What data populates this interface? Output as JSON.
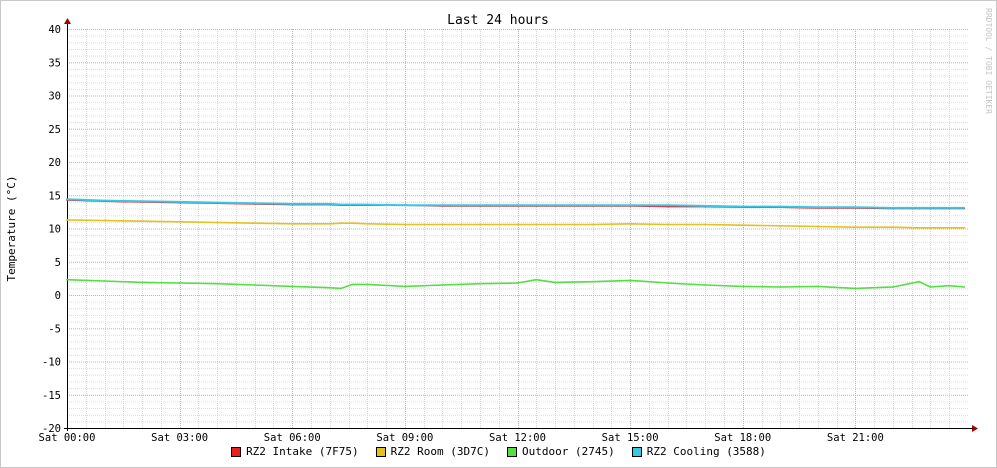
{
  "watermark": "RRDTOOL / TOBI OETIKER",
  "chart_data": {
    "type": "line",
    "title": "Last 24 hours",
    "xlabel": "",
    "ylabel": "Temperature (°C)",
    "ylim": [
      -20,
      40
    ],
    "yticks": [
      40,
      35,
      30,
      25,
      20,
      15,
      10,
      5,
      0,
      -5,
      -10,
      -15,
      -20
    ],
    "xlim_hours": [
      0,
      24
    ],
    "x_tick_hours": [
      0,
      3,
      6,
      9,
      12,
      15,
      18,
      21
    ],
    "x_tick_labels": [
      "Sat 00:00",
      "Sat 03:00",
      "Sat 06:00",
      "Sat 09:00",
      "Sat 12:00",
      "Sat 15:00",
      "Sat 18:00",
      "Sat 21:00"
    ],
    "grid": true,
    "legend_position": "bottom",
    "x_hours": [
      0,
      1,
      2,
      3,
      4,
      5,
      6,
      7,
      7.3,
      7.6,
      8,
      9,
      10,
      11,
      12,
      12.5,
      13,
      14,
      15,
      16,
      17,
      18,
      19,
      20,
      21,
      22,
      22.7,
      23,
      23.5,
      23.9
    ],
    "series": [
      {
        "name": "RZ2 Intake (7F75)",
        "color": "#ee1c1c",
        "values": [
          14.3,
          14.1,
          14.0,
          13.9,
          13.8,
          13.7,
          13.6,
          13.6,
          13.5,
          13.5,
          13.5,
          13.5,
          13.4,
          13.4,
          13.4,
          13.4,
          13.4,
          13.4,
          13.4,
          13.3,
          13.3,
          13.2,
          13.2,
          13.1,
          13.1,
          13.0,
          13.0,
          13.0,
          13.0,
          13.0
        ]
      },
      {
        "name": "RZ2 Room (3D7C)",
        "color": "#e6c01e",
        "values": [
          11.3,
          11.2,
          11.1,
          11.0,
          10.9,
          10.8,
          10.7,
          10.7,
          10.8,
          10.8,
          10.7,
          10.6,
          10.6,
          10.6,
          10.6,
          10.6,
          10.6,
          10.6,
          10.7,
          10.6,
          10.6,
          10.5,
          10.4,
          10.3,
          10.2,
          10.2,
          10.1,
          10.1,
          10.1,
          10.1
        ]
      },
      {
        "name": "Outdoor (2745)",
        "color": "#55dd44",
        "values": [
          2.3,
          2.1,
          1.9,
          1.8,
          1.7,
          1.5,
          1.3,
          1.1,
          1.0,
          1.6,
          1.6,
          1.3,
          1.5,
          1.7,
          1.8,
          2.3,
          1.9,
          2.0,
          2.2,
          1.8,
          1.5,
          1.3,
          1.2,
          1.3,
          1.0,
          1.2,
          2.0,
          1.2,
          1.4,
          1.2
        ]
      },
      {
        "name": "RZ2 Cooling (3588)",
        "color": "#38c8e6",
        "values": [
          14.4,
          14.2,
          14.1,
          14.0,
          13.9,
          13.8,
          13.7,
          13.7,
          13.6,
          13.6,
          13.6,
          13.5,
          13.5,
          13.5,
          13.5,
          13.5,
          13.5,
          13.5,
          13.5,
          13.5,
          13.4,
          13.3,
          13.3,
          13.2,
          13.2,
          13.1,
          13.1,
          13.1,
          13.1,
          13.1
        ]
      }
    ]
  }
}
